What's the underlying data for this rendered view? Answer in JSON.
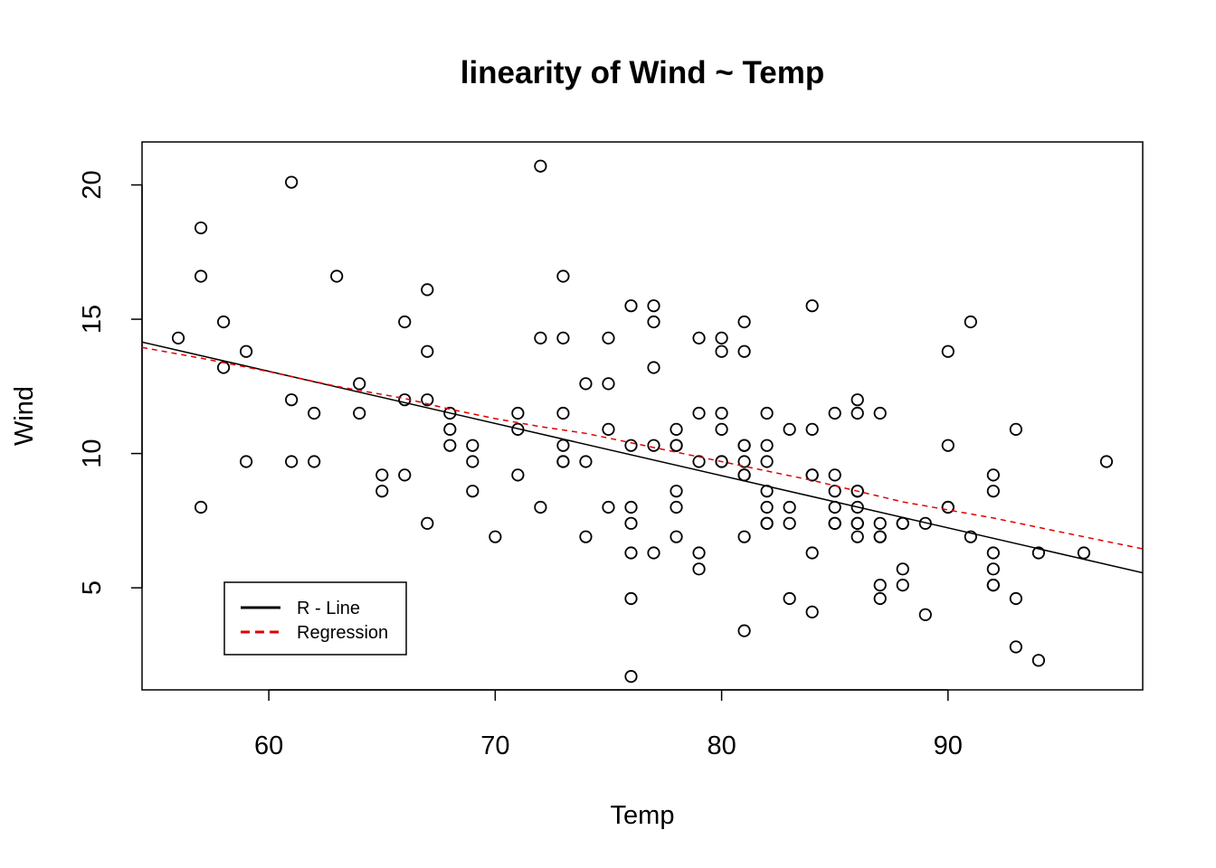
{
  "chart_data": {
    "type": "scatter",
    "title": "linearity of Wind ~ Temp",
    "xlabel": "Temp",
    "ylabel": "Wind",
    "xlim": [
      54.4,
      98.6
    ],
    "ylim": [
      1.2,
      21.6
    ],
    "x_ticks": [
      60,
      70,
      80,
      90
    ],
    "y_ticks": [
      5,
      10,
      15,
      20
    ],
    "grid": false,
    "legend_position": "bottom-left",
    "legend": [
      {
        "label": "R - Line",
        "color": "#000000",
        "dash": "solid"
      },
      {
        "label": "Regression",
        "color": "#e00000",
        "dash": "dashed"
      }
    ],
    "series": [
      {
        "name": "points",
        "marker": "open-circle",
        "color": "#000000",
        "x": [
          56,
          57,
          57,
          57,
          58,
          58,
          59,
          59,
          61,
          61,
          61,
          62,
          62,
          63,
          64,
          64,
          65,
          65,
          66,
          66,
          66,
          67,
          67,
          67,
          67,
          68,
          68,
          68,
          69,
          69,
          69,
          70,
          71,
          71,
          71,
          72,
          72,
          72,
          73,
          73,
          73,
          73,
          73,
          73,
          74,
          74,
          74,
          75,
          75,
          75,
          75,
          76,
          76,
          76,
          76,
          76,
          76,
          76,
          77,
          77,
          77,
          77,
          77,
          78,
          78,
          78,
          78,
          78,
          78,
          79,
          79,
          79,
          79,
          79,
          80,
          80,
          80,
          80,
          80,
          80,
          81,
          81,
          81,
          81,
          81,
          81,
          81,
          81,
          81,
          82,
          82,
          82,
          82,
          82,
          82,
          82,
          83,
          83,
          83,
          83,
          84,
          84,
          84,
          84,
          84,
          84,
          85,
          85,
          85,
          85,
          85,
          85,
          86,
          86,
          86,
          86,
          86,
          86,
          86,
          86,
          87,
          87,
          87,
          87,
          87,
          87,
          88,
          88,
          88,
          88,
          89,
          89,
          90,
          90,
          90,
          90,
          91,
          91,
          92,
          92,
          92,
          92,
          92,
          92,
          93,
          93,
          93,
          94,
          94,
          96,
          97
        ],
        "y": [
          14.3,
          18.4,
          16.6,
          8.0,
          14.9,
          13.2,
          13.8,
          9.7,
          20.1,
          12.0,
          9.7,
          11.5,
          9.7,
          16.6,
          12.6,
          11.5,
          9.2,
          8.6,
          14.9,
          12.0,
          9.2,
          16.1,
          13.8,
          12.0,
          7.4,
          11.5,
          10.9,
          10.3,
          10.3,
          9.7,
          8.6,
          6.9,
          11.5,
          10.9,
          9.2,
          20.7,
          14.3,
          8.0,
          16.6,
          14.3,
          11.5,
          10.3,
          9.7,
          9.7,
          12.6,
          9.7,
          6.9,
          14.3,
          12.6,
          10.9,
          8.0,
          15.5,
          10.3,
          8.0,
          7.4,
          6.3,
          4.6,
          1.7,
          15.5,
          14.9,
          13.2,
          10.3,
          6.3,
          10.9,
          10.3,
          8.6,
          8.0,
          6.9,
          10.3,
          14.3,
          11.5,
          9.7,
          6.3,
          5.7,
          14.3,
          13.8,
          11.5,
          10.9,
          9.7,
          9.7,
          14.9,
          13.8,
          10.3,
          9.7,
          9.2,
          9.2,
          6.9,
          3.4,
          10.3,
          11.5,
          10.3,
          9.7,
          8.6,
          8.0,
          7.4,
          7.4,
          10.9,
          8.0,
          7.4,
          4.6,
          15.5,
          10.9,
          9.2,
          6.3,
          4.1,
          9.2,
          11.5,
          9.2,
          8.6,
          8.0,
          7.4,
          7.4,
          12.0,
          11.5,
          8.6,
          8.0,
          7.4,
          6.9,
          8.6,
          7.4,
          11.5,
          7.4,
          6.9,
          6.9,
          5.1,
          4.6,
          7.4,
          5.7,
          5.1,
          7.4,
          7.4,
          4.0,
          13.8,
          10.3,
          8.0,
          8.0,
          14.9,
          6.9,
          9.2,
          8.6,
          6.3,
          5.7,
          5.1,
          5.1,
          10.9,
          4.6,
          2.8,
          6.3,
          2.3,
          6.3,
          9.7
        ]
      }
    ],
    "r_line": {
      "name": "R - Line",
      "x": [
        54.4,
        98.6
      ],
      "y": [
        14.15,
        5.56
      ]
    },
    "regression": {
      "name": "Regression",
      "x": [
        54.4,
        57,
        60,
        63,
        66,
        68,
        70,
        72,
        74,
        76,
        78,
        80,
        82,
        84,
        86,
        88,
        90,
        92,
        94,
        96,
        98.6
      ],
      "y": [
        13.95,
        13.55,
        13.05,
        12.5,
        12.05,
        11.65,
        11.3,
        11.0,
        10.75,
        10.4,
        10.05,
        9.7,
        9.35,
        9.0,
        8.6,
        8.2,
        7.9,
        7.6,
        7.25,
        6.9,
        6.45
      ]
    }
  }
}
